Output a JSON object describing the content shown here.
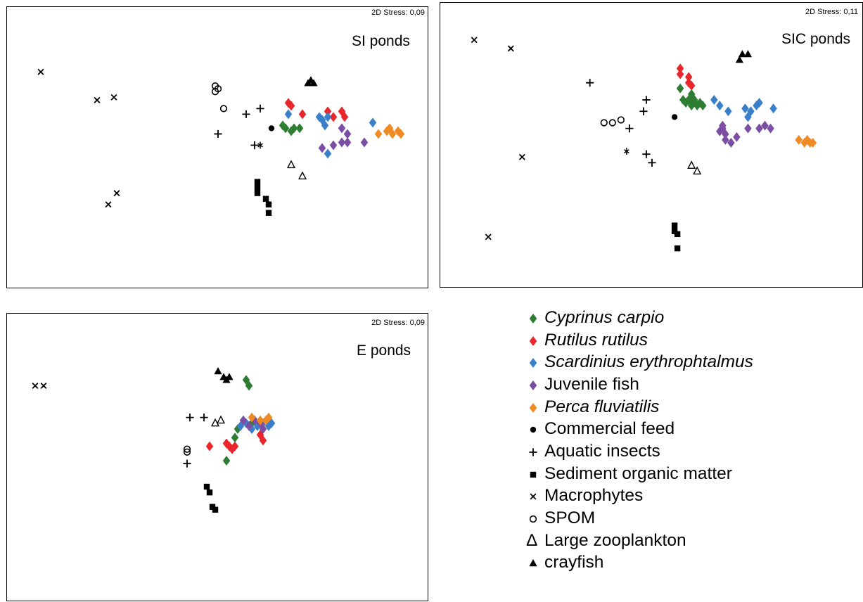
{
  "legend": [
    {
      "key": "cyprinus",
      "label": "Cyprinus carpio",
      "italic": true,
      "symbol": "diamond",
      "color": "#2e7d32"
    },
    {
      "key": "rutilus",
      "label": "Rutilus rutilus",
      "italic": true,
      "symbol": "diamond",
      "color": "#e8262b"
    },
    {
      "key": "scardinius",
      "label": "Scardinius erythrophtalmus",
      "italic": true,
      "symbol": "diamond",
      "color": "#3a7fc9"
    },
    {
      "key": "juvenile",
      "label": "Juvenile fish",
      "italic": false,
      "symbol": "diamond",
      "color": "#7b4ea3"
    },
    {
      "key": "perca",
      "label": "Perca fluviatilis",
      "italic": true,
      "symbol": "diamond",
      "color": "#f08a24"
    },
    {
      "key": "feed",
      "label": "Commercial feed",
      "italic": false,
      "symbol": "circle",
      "color": "#000000"
    },
    {
      "key": "insects",
      "label": "Aquatic insects",
      "italic": false,
      "symbol": "plus",
      "color": "#000000"
    },
    {
      "key": "sediment",
      "label": "Sediment organic matter",
      "italic": false,
      "symbol": "square",
      "color": "#000000"
    },
    {
      "key": "macrophytes",
      "label": "Macrophytes",
      "italic": false,
      "symbol": "x",
      "color": "#000000"
    },
    {
      "key": "spom",
      "label": "SPOM",
      "italic": false,
      "symbol": "ocircle",
      "color": "#000000"
    },
    {
      "key": "zooplankton",
      "label": "Large zooplankton",
      "italic": false,
      "symbol": "otriangle",
      "color": "#000000"
    },
    {
      "key": "crayfish",
      "label": "crayfish",
      "italic": false,
      "symbol": "triangle",
      "color": "#000000"
    }
  ],
  "legend_text": {
    "zooplankton_prefix": "Δ"
  },
  "chart_data": [
    {
      "type": "scatter",
      "title": "SI ponds",
      "stress_label": "2D Stress: 0,09",
      "xlabel": "",
      "ylabel": "",
      "series": [
        {
          "key": "macrophytes",
          "points": [
            [
              0.12,
              0.77
            ],
            [
              0.32,
              0.67
            ],
            [
              0.38,
              0.68
            ],
            [
              0.39,
              0.34
            ],
            [
              0.36,
              0.3
            ]
          ]
        },
        {
          "key": "spom",
          "points": [
            [
              0.74,
              0.72
            ],
            [
              0.74,
              0.7
            ],
            [
              0.75,
              0.71
            ],
            [
              0.77,
              0.64
            ]
          ]
        },
        {
          "key": "insects",
          "points": [
            [
              0.75,
              0.55
            ],
            [
              0.85,
              0.62
            ],
            [
              0.9,
              0.64
            ],
            [
              0.88,
              0.51
            ]
          ]
        },
        {
          "key": "feed",
          "points": [
            [
              0.94,
              0.57
            ]
          ]
        },
        {
          "key": "crayfish",
          "points": [
            [
              1.07,
              0.73
            ],
            [
              1.08,
              0.74
            ],
            [
              1.09,
              0.73
            ]
          ]
        },
        {
          "key": "zooplankton",
          "points": [
            [
              1.01,
              0.44
            ],
            [
              1.05,
              0.4
            ]
          ]
        },
        {
          "key": "sediment",
          "points": [
            [
              0.89,
              0.38
            ],
            [
              0.89,
              0.36
            ],
            [
              0.89,
              0.34
            ],
            [
              0.92,
              0.32
            ],
            [
              0.93,
              0.3
            ],
            [
              0.93,
              0.27
            ]
          ]
        },
        {
          "key": "rutilus",
          "points": [
            [
              1.0,
              0.66
            ],
            [
              1.01,
              0.65
            ],
            [
              1.05,
              0.62
            ],
            [
              1.14,
              0.63
            ],
            [
              1.16,
              0.61
            ],
            [
              1.19,
              0.63
            ],
            [
              1.2,
              0.61
            ]
          ]
        },
        {
          "key": "scardinius",
          "points": [
            [
              1.0,
              0.62
            ],
            [
              1.11,
              0.61
            ],
            [
              1.12,
              0.6
            ],
            [
              1.13,
              0.58
            ],
            [
              1.14,
              0.61
            ],
            [
              1.3,
              0.59
            ],
            [
              1.14,
              0.48
            ]
          ]
        },
        {
          "key": "cyprinus",
          "points": [
            [
              0.98,
              0.58
            ],
            [
              0.99,
              0.57
            ],
            [
              1.01,
              0.56
            ],
            [
              1.02,
              0.57
            ],
            [
              1.04,
              0.57
            ]
          ]
        },
        {
          "key": "juvenile",
          "points": [
            [
              1.19,
              0.57
            ],
            [
              1.21,
              0.55
            ],
            [
              1.12,
              0.5
            ],
            [
              1.16,
              0.51
            ],
            [
              1.19,
              0.52
            ],
            [
              1.21,
              0.52
            ],
            [
              1.27,
              0.52
            ]
          ]
        },
        {
          "key": "perca",
          "points": [
            [
              1.32,
              0.55
            ],
            [
              1.35,
              0.56
            ],
            [
              1.36,
              0.57
            ],
            [
              1.37,
              0.55
            ],
            [
              1.39,
              0.56
            ],
            [
              1.4,
              0.55
            ]
          ]
        },
        {
          "key": "asterisk",
          "points": [
            [
              0.9,
              0.51
            ]
          ]
        }
      ]
    },
    {
      "type": "scatter",
      "title": "SIC ponds",
      "stress_label": "2D Stress: 0,11",
      "xlabel": "",
      "ylabel": "",
      "series": [
        {
          "key": "macrophytes",
          "points": [
            [
              0.12,
              0.87
            ],
            [
              0.25,
              0.84
            ],
            [
              0.29,
              0.46
            ],
            [
              0.17,
              0.18
            ]
          ]
        },
        {
          "key": "insects",
          "points": [
            [
              0.53,
              0.72
            ],
            [
              0.73,
              0.66
            ],
            [
              0.72,
              0.62
            ],
            [
              0.67,
              0.56
            ],
            [
              0.73,
              0.47
            ],
            [
              0.75,
              0.44
            ]
          ]
        },
        {
          "key": "spom",
          "points": [
            [
              0.58,
              0.58
            ],
            [
              0.61,
              0.58
            ],
            [
              0.64,
              0.59
            ]
          ]
        },
        {
          "key": "asterisk",
          "points": [
            [
              0.66,
              0.48
            ]
          ]
        },
        {
          "key": "feed",
          "points": [
            [
              0.83,
              0.6
            ]
          ]
        },
        {
          "key": "crayfish",
          "points": [
            [
              1.06,
              0.8
            ],
            [
              1.07,
              0.82
            ],
            [
              1.09,
              0.82
            ]
          ]
        },
        {
          "key": "zooplankton",
          "points": [
            [
              0.89,
              0.43
            ],
            [
              0.91,
              0.41
            ]
          ]
        },
        {
          "key": "sediment",
          "points": [
            [
              0.83,
              0.22
            ],
            [
              0.83,
              0.2
            ],
            [
              0.84,
              0.19
            ],
            [
              0.84,
              0.14
            ]
          ]
        },
        {
          "key": "rutilus",
          "points": [
            [
              0.85,
              0.77
            ],
            [
              0.85,
              0.75
            ],
            [
              0.88,
              0.74
            ],
            [
              0.88,
              0.72
            ],
            [
              0.89,
              0.71
            ]
          ]
        },
        {
          "key": "cyprinus",
          "points": [
            [
              0.85,
              0.7
            ],
            [
              0.86,
              0.66
            ],
            [
              0.87,
              0.65
            ],
            [
              0.88,
              0.66
            ],
            [
              0.89,
              0.64
            ],
            [
              0.9,
              0.66
            ],
            [
              0.91,
              0.64
            ],
            [
              0.92,
              0.65
            ],
            [
              0.93,
              0.64
            ],
            [
              0.89,
              0.68
            ]
          ]
        },
        {
          "key": "scardinius",
          "points": [
            [
              0.97,
              0.66
            ],
            [
              0.99,
              0.64
            ],
            [
              1.02,
              0.62
            ],
            [
              1.08,
              0.63
            ],
            [
              1.1,
              0.62
            ],
            [
              1.12,
              0.64
            ],
            [
              1.13,
              0.65
            ],
            [
              1.18,
              0.63
            ],
            [
              1.09,
              0.6
            ]
          ]
        },
        {
          "key": "juvenile",
          "points": [
            [
              1.0,
              0.57
            ],
            [
              0.99,
              0.55
            ],
            [
              1.01,
              0.52
            ],
            [
              1.03,
              0.51
            ],
            [
              1.05,
              0.53
            ],
            [
              1.09,
              0.56
            ],
            [
              1.13,
              0.56
            ],
            [
              1.15,
              0.57
            ],
            [
              1.17,
              0.56
            ],
            [
              1.0,
              0.56
            ],
            [
              1.01,
              0.54
            ]
          ]
        },
        {
          "key": "perca",
          "points": [
            [
              1.27,
              0.52
            ],
            [
              1.29,
              0.51
            ],
            [
              1.3,
              0.52
            ],
            [
              1.31,
              0.51
            ],
            [
              1.32,
              0.51
            ]
          ]
        }
      ]
    },
    {
      "type": "scatter",
      "title": "E ponds",
      "stress_label": "2D Stress: 0,09",
      "xlabel": "",
      "ylabel": "",
      "series": [
        {
          "key": "macrophytes",
          "points": [
            [
              0.1,
              0.75
            ],
            [
              0.13,
              0.75
            ]
          ]
        },
        {
          "key": "crayfish",
          "points": [
            [
              0.75,
              0.8
            ],
            [
              0.77,
              0.78
            ],
            [
              0.78,
              0.77
            ],
            [
              0.79,
              0.78
            ]
          ]
        },
        {
          "key": "insects",
          "points": [
            [
              0.65,
              0.64
            ],
            [
              0.7,
              0.64
            ],
            [
              0.64,
              0.48
            ]
          ]
        },
        {
          "key": "zooplankton",
          "points": [
            [
              0.74,
              0.62
            ],
            [
              0.76,
              0.63
            ]
          ]
        },
        {
          "key": "spom",
          "points": [
            [
              0.64,
              0.53
            ],
            [
              0.64,
              0.52
            ]
          ]
        },
        {
          "key": "sediment",
          "points": [
            [
              0.71,
              0.4
            ],
            [
              0.72,
              0.38
            ],
            [
              0.73,
              0.33
            ],
            [
              0.74,
              0.32
            ]
          ]
        },
        {
          "key": "rutilus",
          "points": [
            [
              0.72,
              0.54
            ],
            [
              0.78,
              0.55
            ],
            [
              0.79,
              0.54
            ],
            [
              0.8,
              0.53
            ],
            [
              0.81,
              0.54
            ],
            [
              0.9,
              0.58
            ],
            [
              0.91,
              0.56
            ]
          ]
        },
        {
          "key": "cyprinus",
          "points": [
            [
              0.85,
              0.77
            ],
            [
              0.86,
              0.75
            ],
            [
              0.78,
              0.49
            ],
            [
              0.81,
              0.57
            ],
            [
              0.82,
              0.6
            ],
            [
              0.87,
              0.62
            ]
          ]
        },
        {
          "key": "scardinius",
          "points": [
            [
              0.83,
              0.61
            ],
            [
              0.85,
              0.62
            ],
            [
              0.87,
              0.6
            ],
            [
              0.89,
              0.61
            ],
            [
              0.91,
              0.62
            ],
            [
              0.93,
              0.61
            ],
            [
              0.94,
              0.62
            ]
          ]
        },
        {
          "key": "juvenile",
          "points": [
            [
              0.84,
              0.63
            ],
            [
              0.86,
              0.61
            ],
            [
              0.88,
              0.63
            ],
            [
              0.9,
              0.62
            ],
            [
              0.91,
              0.6
            ]
          ]
        },
        {
          "key": "perca",
          "points": [
            [
              0.87,
              0.64
            ],
            [
              0.9,
              0.63
            ],
            [
              0.92,
              0.63
            ],
            [
              0.93,
              0.64
            ]
          ]
        }
      ]
    }
  ]
}
